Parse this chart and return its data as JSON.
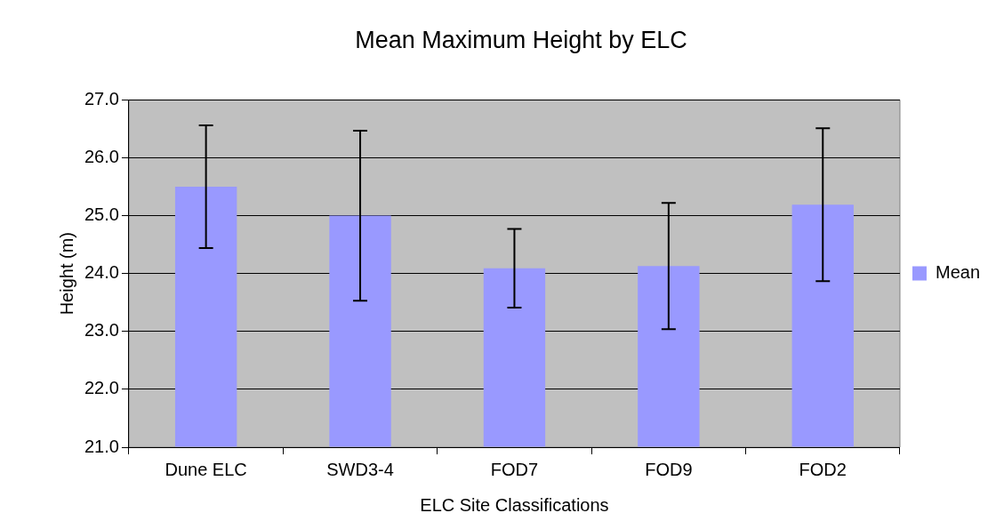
{
  "chart_data": {
    "type": "bar",
    "title": "Mean Maximum Height by ELC",
    "xlabel": "ELC Site Classifications",
    "ylabel": "Height (m)",
    "categories": [
      "Dune ELC",
      "SWD3-4",
      "FOD7",
      "FOD9",
      "FOD2"
    ],
    "series": [
      {
        "name": "Mean",
        "color": "#9999ff",
        "values": [
          25.5,
          25.0,
          24.09,
          24.13,
          25.19
        ],
        "errors": [
          1.06,
          1.47,
          0.68,
          1.09,
          1.32
        ]
      }
    ],
    "ylim": [
      21,
      27
    ],
    "yticks": [
      {
        "value": 21,
        "label": "21.0"
      },
      {
        "value": 22,
        "label": "22.0"
      },
      {
        "value": 23,
        "label": "23.0"
      },
      {
        "value": 24,
        "label": "24.0"
      },
      {
        "value": 25,
        "label": "25.0"
      },
      {
        "value": 26,
        "label": "26.0"
      },
      {
        "value": 27,
        "label": "27.0"
      }
    ],
    "grid": "y",
    "legend": "right"
  }
}
